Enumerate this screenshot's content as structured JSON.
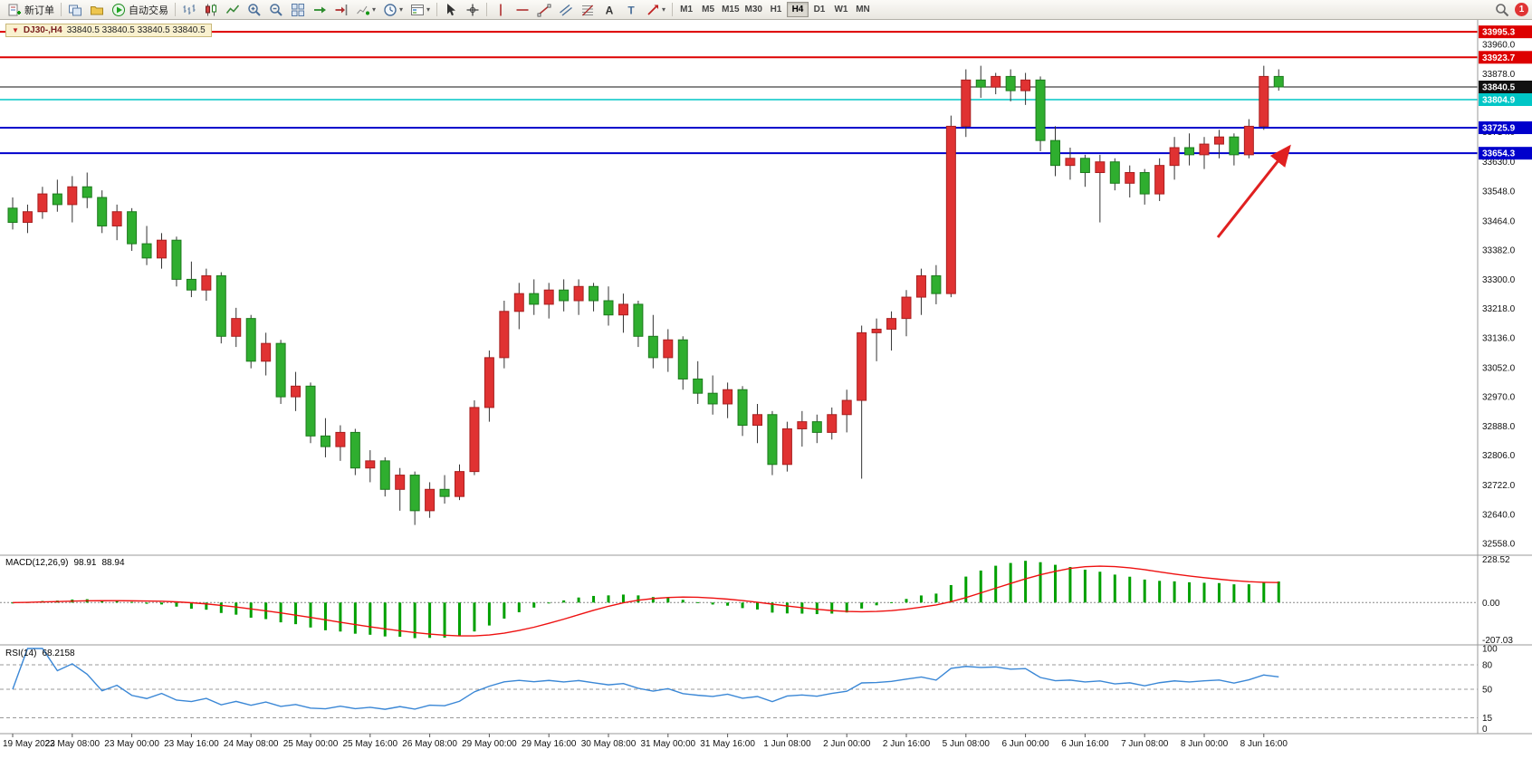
{
  "toolbar": {
    "new_order_label": "新订单",
    "autotrade_label": "自动交易",
    "timeframes": [
      "M1",
      "M5",
      "M15",
      "M30",
      "H1",
      "H4",
      "D1",
      "W1",
      "MN"
    ],
    "active_timeframe": "H4",
    "notification_count": "1"
  },
  "window": {
    "title_tab": {
      "symbol": "DJ30-,H4",
      "quote": "33840.5 33840.5 33840.5 33840.5"
    }
  },
  "colors": {
    "bull": "#e03232",
    "bull_border": "#a81f1f",
    "bear": "#2fae2f",
    "bear_border": "#1d7a1d",
    "wick": "#333333",
    "arrow": "#e02020",
    "level_red": "#dd0000",
    "level_blue": "#0000cc",
    "level_cyan": "#00c6c6",
    "current_price": "#111111"
  },
  "chart_data": {
    "type": "candlestick",
    "title": "DJ30-,H4",
    "symbol": "DJ30-",
    "timeframe": "H4",
    "ylim": [
      32558,
      33960
    ],
    "price_axis_labels": [
      "33960.0",
      "33878.0",
      "33796.0",
      "33714.0",
      "33630.0",
      "33548.0",
      "33464.0",
      "33382.0",
      "33300.0",
      "33218.0",
      "33136.0",
      "33052.0",
      "32970.0",
      "32888.0",
      "32806.0",
      "32722.0",
      "32640.0",
      "32558.0"
    ],
    "price_tags": [
      {
        "price": 33995.3,
        "label": "33995.3",
        "bg": "#dd0000",
        "fg": "#ffffff"
      },
      {
        "price": 33923.7,
        "label": "33923.7",
        "bg": "#dd0000",
        "fg": "#ffffff"
      },
      {
        "price": 33840.5,
        "label": "33840.5",
        "bg": "#111111",
        "fg": "#ffffff"
      },
      {
        "price": 33804.9,
        "label": "33804.9",
        "bg": "#00c6c6",
        "fg": "#ffffff"
      },
      {
        "price": 33725.9,
        "label": "33725.9",
        "bg": "#0000cc",
        "fg": "#ffffff"
      },
      {
        "price": 33654.3,
        "label": "33654.3",
        "bg": "#0000cc",
        "fg": "#ffffff"
      }
    ],
    "level_lines": [
      {
        "price": 33995.3,
        "color": "#dd0000",
        "width": 2
      },
      {
        "price": 33923.7,
        "color": "#dd0000",
        "width": 2
      },
      {
        "price": 33840.5,
        "color": "#111111",
        "width": 1
      },
      {
        "price": 33804.9,
        "color": "#00c6c6",
        "width": 1.5
      },
      {
        "price": 33725.9,
        "color": "#0000cc",
        "width": 2
      },
      {
        "price": 33654.3,
        "color": "#0000cc",
        "width": 2
      }
    ],
    "time_labels": [
      "19 May 2023",
      "22 May 08:00",
      "23 May 00:00",
      "23 May 16:00",
      "24 May 08:00",
      "25 May 00:00",
      "25 May 16:00",
      "26 May 08:00",
      "29 May 00:00",
      "29 May 16:00",
      "30 May 08:00",
      "31 May 00:00",
      "31 May 16:00",
      "1 Jun 08:00",
      "2 Jun 00:00",
      "2 Jun 16:00",
      "5 Jun 08:00",
      "6 Jun 00:00",
      "6 Jun 16:00",
      "7 Jun 08:00",
      "8 Jun 00:00",
      "8 Jun 16:00"
    ],
    "ohlc": [
      [
        33500,
        33530,
        33440,
        33460
      ],
      [
        33460,
        33510,
        33430,
        33490
      ],
      [
        33490,
        33560,
        33470,
        33540
      ],
      [
        33540,
        33580,
        33490,
        33510
      ],
      [
        33510,
        33590,
        33460,
        33560
      ],
      [
        33560,
        33600,
        33500,
        33530
      ],
      [
        33530,
        33550,
        33430,
        33450
      ],
      [
        33450,
        33510,
        33410,
        33490
      ],
      [
        33490,
        33500,
        33380,
        33400
      ],
      [
        33400,
        33450,
        33340,
        33360
      ],
      [
        33360,
        33430,
        33330,
        33410
      ],
      [
        33410,
        33420,
        33280,
        33300
      ],
      [
        33300,
        33350,
        33250,
        33270
      ],
      [
        33270,
        33330,
        33240,
        33310
      ],
      [
        33310,
        33320,
        33120,
        33140
      ],
      [
        33140,
        33220,
        33110,
        33190
      ],
      [
        33190,
        33200,
        33050,
        33070
      ],
      [
        33070,
        33150,
        33030,
        33120
      ],
      [
        33120,
        33130,
        32950,
        32970
      ],
      [
        32970,
        33040,
        32930,
        33000
      ],
      [
        33000,
        33010,
        32840,
        32860
      ],
      [
        32860,
        32910,
        32800,
        32830
      ],
      [
        32830,
        32890,
        32790,
        32870
      ],
      [
        32870,
        32880,
        32750,
        32770
      ],
      [
        32770,
        32820,
        32730,
        32790
      ],
      [
        32790,
        32800,
        32690,
        32710
      ],
      [
        32710,
        32770,
        32650,
        32750
      ],
      [
        32750,
        32760,
        32610,
        32650
      ],
      [
        32650,
        32730,
        32630,
        32710
      ],
      [
        32710,
        32750,
        32670,
        32690
      ],
      [
        32690,
        32780,
        32680,
        32760
      ],
      [
        32760,
        32960,
        32750,
        32940
      ],
      [
        32940,
        33100,
        32900,
        33080
      ],
      [
        33080,
        33240,
        33050,
        33210
      ],
      [
        33210,
        33290,
        33160,
        33260
      ],
      [
        33260,
        33300,
        33200,
        33230
      ],
      [
        33230,
        33290,
        33190,
        33270
      ],
      [
        33270,
        33300,
        33210,
        33240
      ],
      [
        33240,
        33300,
        33200,
        33280
      ],
      [
        33280,
        33290,
        33210,
        33240
      ],
      [
        33240,
        33280,
        33170,
        33200
      ],
      [
        33200,
        33260,
        33150,
        33230
      ],
      [
        33230,
        33240,
        33110,
        33140
      ],
      [
        33140,
        33200,
        33050,
        33080
      ],
      [
        33080,
        33160,
        33040,
        33130
      ],
      [
        33130,
        33140,
        32990,
        33020
      ],
      [
        33020,
        33070,
        32950,
        32980
      ],
      [
        32980,
        33030,
        32920,
        32950
      ],
      [
        32950,
        33010,
        32910,
        32990
      ],
      [
        32990,
        33000,
        32860,
        32890
      ],
      [
        32890,
        32950,
        32840,
        32920
      ],
      [
        32920,
        32930,
        32750,
        32780
      ],
      [
        32780,
        32900,
        32760,
        32880
      ],
      [
        32880,
        32930,
        32830,
        32900
      ],
      [
        32900,
        32920,
        32840,
        32870
      ],
      [
        32870,
        32940,
        32850,
        32920
      ],
      [
        32920,
        32990,
        32870,
        32960
      ],
      [
        32960,
        33170,
        32740,
        33150
      ],
      [
        33150,
        33190,
        33070,
        33160
      ],
      [
        33160,
        33210,
        33100,
        33190
      ],
      [
        33190,
        33270,
        33140,
        33250
      ],
      [
        33250,
        33330,
        33200,
        33310
      ],
      [
        33310,
        33340,
        33230,
        33260
      ],
      [
        33260,
        33760,
        33250,
        33730
      ],
      [
        33730,
        33890,
        33700,
        33860
      ],
      [
        33860,
        33900,
        33810,
        33840
      ],
      [
        33840,
        33880,
        33820,
        33870
      ],
      [
        33870,
        33890,
        33800,
        33830
      ],
      [
        33830,
        33880,
        33790,
        33860
      ],
      [
        33860,
        33870,
        33660,
        33690
      ],
      [
        33690,
        33730,
        33590,
        33620
      ],
      [
        33620,
        33670,
        33580,
        33640
      ],
      [
        33640,
        33650,
        33560,
        33600
      ],
      [
        33600,
        33650,
        33460,
        33630
      ],
      [
        33630,
        33640,
        33550,
        33570
      ],
      [
        33570,
        33620,
        33530,
        33600
      ],
      [
        33600,
        33610,
        33510,
        33540
      ],
      [
        33540,
        33640,
        33520,
        33620
      ],
      [
        33620,
        33700,
        33580,
        33670
      ],
      [
        33670,
        33710,
        33620,
        33650
      ],
      [
        33650,
        33700,
        33610,
        33680
      ],
      [
        33680,
        33720,
        33640,
        33700
      ],
      [
        33700,
        33710,
        33620,
        33650
      ],
      [
        33650,
        33750,
        33640,
        33730
      ],
      [
        33730,
        33900,
        33720,
        33870
      ],
      [
        33870,
        33890,
        33830,
        33840.5
      ]
    ],
    "annotations": [
      {
        "type": "arrow",
        "direction": "up-right",
        "color": "#e02020"
      }
    ],
    "indicators": [
      {
        "name": "MACD",
        "label": "MACD(12,26,9)",
        "values_text": [
          "98.91",
          "88.94"
        ],
        "axis_labels": [
          "228.52",
          "0.00",
          "-207.03"
        ],
        "ylim": [
          -207.03,
          228.52
        ],
        "histogram_color": "#00a000",
        "signal_color": "#ee1111"
      },
      {
        "name": "RSI",
        "label": "RSI(14)",
        "values_text": [
          "68.2158"
        ],
        "axis_labels": [
          "100",
          "80",
          "50",
          "15",
          "0"
        ],
        "levels": [
          80,
          50,
          15
        ],
        "ylim": [
          0,
          100
        ],
        "line_color": "#3a87d6"
      }
    ]
  }
}
